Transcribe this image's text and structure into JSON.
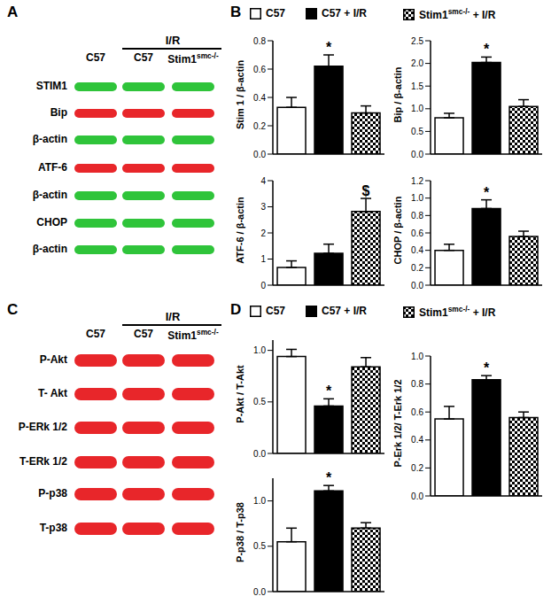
{
  "panels": [
    "A",
    "B",
    "C",
    "D"
  ],
  "legend": [
    {
      "parts": [
        {
          "text": "C57"
        }
      ],
      "color": "#ffffff"
    },
    {
      "parts": [
        {
          "text": "C57 + I/R"
        }
      ],
      "color": "#000000"
    },
    {
      "parts": [
        {
          "text": "Stim1"
        },
        {
          "text": "smc-/-",
          "sup": true
        },
        {
          "text": " + I/R"
        }
      ],
      "color": "checkered"
    }
  ],
  "blots": [
    {
      "group_label": "I/R",
      "lanes": [
        [
          {
            "text": "C57"
          }
        ],
        [
          {
            "text": "C57"
          }
        ],
        [
          {
            "text": "Stim1"
          },
          {
            "text": "smc-/-",
            "sup": true
          }
        ]
      ],
      "rows": [
        {
          "label": "STIM1",
          "color": "#2fc43a"
        },
        {
          "label": "Bip",
          "color": "#e8262a"
        },
        {
          "label": "β-actin",
          "color": "#2fc43a"
        },
        {
          "label": "ATF-6",
          "color": "#e8262a"
        },
        {
          "label": "β-actin",
          "color": "#2fc43a"
        },
        {
          "label": "CHOP",
          "color": "#2fc43a"
        },
        {
          "label": "β-actin",
          "color": "#2fc43a"
        }
      ]
    },
    {
      "group_label": "I/R",
      "lanes": [
        [
          {
            "text": "C57"
          }
        ],
        [
          {
            "text": "C57"
          }
        ],
        [
          {
            "text": "Stim1"
          },
          {
            "text": "smc-/-",
            "sup": true
          }
        ]
      ],
      "rows": [
        {
          "label": "P-Akt",
          "color": "#e8262a"
        },
        {
          "label": "T- Akt",
          "color": "#e8262a"
        },
        {
          "label": "P-ERk 1/2",
          "color": "#e8262a"
        },
        {
          "label": "T-ERk 1/2",
          "color": "#e8262a"
        },
        {
          "label": "P-p38",
          "color": "#e8262a"
        },
        {
          "label": "T-p38",
          "color": "#e8262a"
        }
      ]
    }
  ],
  "chart_data": [
    {
      "type": "bar",
      "y_label": "Stim 1 / β-actin",
      "values": [
        0.33,
        0.62,
        0.29
      ],
      "errors": [
        0.07,
        0.08,
        0.05
      ],
      "annotations": [
        null,
        "*",
        null
      ],
      "ylim": [
        0,
        0.8
      ],
      "yticks": [
        {
          "value": 0,
          "label": "0.0"
        },
        0.2,
        0.4,
        0.6,
        0.8
      ],
      "tick_labels": "y"
    },
    {
      "type": "bar",
      "y_label": "Bip / β-actin",
      "values": [
        0.8,
        2.02,
        1.05
      ],
      "errors": [
        0.1,
        0.12,
        0.15
      ],
      "annotations": [
        null,
        "*",
        null
      ],
      "ylim": [
        0,
        2.5
      ],
      "yticks": [
        {
          "value": 0,
          "label": "0.0"
        },
        0.5,
        {
          "value": 1,
          "label": "1.0"
        },
        1.5,
        {
          "value": 2,
          "label": "2.0"
        },
        2.5
      ],
      "tick_labels": "y"
    },
    {
      "type": "bar",
      "y_label": "ATF-6 / β-actin",
      "values": [
        0.68,
        1.22,
        2.82
      ],
      "errors": [
        0.25,
        0.35,
        0.5
      ],
      "annotations": [
        null,
        null,
        "$"
      ],
      "ylim": [
        0,
        4
      ],
      "yticks": [
        0,
        1,
        2,
        3,
        4
      ],
      "tick_labels": "y"
    },
    {
      "type": "bar",
      "y_label": "CHOP / β-actin",
      "values": [
        0.4,
        0.88,
        0.56
      ],
      "errors": [
        0.07,
        0.1,
        0.06
      ],
      "annotations": [
        null,
        "*",
        null
      ],
      "ylim": [
        0,
        1.2
      ],
      "yticks": [
        {
          "value": 0,
          "label": "0.0"
        },
        0.2,
        0.4,
        0.6,
        0.8,
        {
          "value": 1,
          "label": "1.0"
        },
        1.2
      ],
      "tick_labels": "y"
    },
    {
      "type": "bar",
      "y_label": "P-Akt / T-Akt",
      "values": [
        0.94,
        0.46,
        0.84
      ],
      "errors": [
        0.07,
        0.07,
        0.09
      ],
      "annotations": [
        null,
        "*",
        null
      ],
      "ylim": [
        0,
        1.1
      ],
      "yticks": [
        {
          "value": 0,
          "label": "0.0"
        },
        0.5,
        {
          "value": 1,
          "label": "1.0"
        }
      ],
      "tick_labels": "y"
    },
    {
      "type": "bar",
      "y_label": "P-p38 / T-p38",
      "values": [
        0.55,
        1.11,
        0.7
      ],
      "errors": [
        0.15,
        0.06,
        0.06
      ],
      "annotations": [
        null,
        "*",
        null
      ],
      "ylim": [
        0,
        1.25
      ],
      "yticks": [
        {
          "value": 0,
          "label": "0.0"
        },
        0.5,
        {
          "value": 1,
          "label": "1.0"
        }
      ],
      "tick_labels": "y"
    },
    {
      "type": "bar",
      "y_label": "P-Erk 1/2/ T-Erk 1/2",
      "values": [
        0.55,
        0.83,
        0.56
      ],
      "errors": [
        0.09,
        0.03,
        0.04
      ],
      "annotations": [
        null,
        "*",
        null
      ],
      "ylim": [
        0,
        1
      ],
      "yticks": [
        {
          "value": 0,
          "label": "0.0"
        },
        0.2,
        0.4,
        0.6,
        0.8,
        {
          "value": 1,
          "label": "1.0"
        }
      ],
      "tick_labels": "y"
    }
  ]
}
